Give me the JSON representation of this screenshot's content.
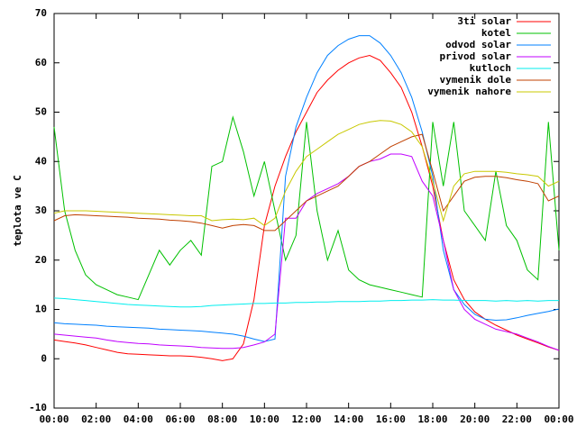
{
  "chart_data": {
    "type": "line",
    "y_label": "teplota ve C",
    "x": [
      0,
      0.5,
      1,
      1.5,
      2,
      2.5,
      3,
      3.5,
      4,
      4.5,
      5,
      5.5,
      6,
      6.5,
      7,
      7.5,
      8,
      8.5,
      9,
      9.5,
      10,
      10.5,
      11,
      11.5,
      12,
      12.5,
      13,
      13.5,
      14,
      14.5,
      15,
      15.5,
      16,
      16.5,
      17,
      17.5,
      18,
      18.5,
      19,
      19.5,
      20,
      20.5,
      21,
      21.5,
      22,
      22.5,
      23,
      23.5,
      24
    ],
    "xlim": [
      0,
      24
    ],
    "xticks": [
      {
        "value": 0,
        "label": "00:00"
      },
      {
        "value": 2,
        "label": "02:00"
      },
      {
        "value": 4,
        "label": "04:00"
      },
      {
        "value": 6,
        "label": "06:00"
      },
      {
        "value": 8,
        "label": "08:00"
      },
      {
        "value": 10,
        "label": "10:00"
      },
      {
        "value": 12,
        "label": "12:00"
      },
      {
        "value": 14,
        "label": "14:00"
      },
      {
        "value": 16,
        "label": "16:00"
      },
      {
        "value": 18,
        "label": "18:00"
      },
      {
        "value": 20,
        "label": "20:00"
      },
      {
        "value": 22,
        "label": "22:00"
      },
      {
        "value": 24,
        "label": "00:00"
      }
    ],
    "ylim": [
      -10,
      70
    ],
    "yticks": [
      -10,
      0,
      10,
      20,
      30,
      40,
      50,
      60,
      70
    ],
    "legend": "top-right",
    "series": [
      {
        "name": "3ti solar",
        "color": "#ff0000",
        "values": [
          3.8,
          3.5,
          3.2,
          2.8,
          2.3,
          1.8,
          1.3,
          1,
          0.9,
          0.8,
          0.7,
          0.6,
          0.6,
          0.5,
          0.3,
          0,
          -0.4,
          0,
          3,
          12,
          27,
          35,
          41,
          46,
          50,
          54,
          56.5,
          58.5,
          60,
          61,
          61.5,
          60.5,
          58,
          55,
          50,
          43,
          35,
          24,
          16,
          12,
          9.5,
          8,
          6.8,
          5.8,
          4.8,
          4,
          3.2,
          2.4,
          1.7
        ]
      },
      {
        "name": "kotel",
        "color": "#00c000",
        "values": [
          47,
          30,
          22,
          17,
          15,
          14,
          13,
          12.5,
          12,
          17,
          22,
          19,
          22,
          24,
          21,
          39,
          40,
          49,
          42,
          33,
          40,
          30,
          20,
          25,
          48,
          30,
          20,
          26,
          18,
          16,
          15,
          14.5,
          14,
          13.5,
          13,
          12.5,
          48,
          35,
          48,
          30,
          27,
          24,
          38,
          27,
          24,
          18,
          16,
          48,
          22
        ]
      },
      {
        "name": "odvod solar",
        "color": "#0080ff",
        "values": [
          7.3,
          7.1,
          7,
          6.9,
          6.8,
          6.6,
          6.5,
          6.4,
          6.3,
          6.2,
          6,
          5.9,
          5.8,
          5.7,
          5.6,
          5.4,
          5.2,
          5,
          4.6,
          4,
          3.5,
          4,
          37,
          47,
          53,
          58,
          61.5,
          63.5,
          64.8,
          65.5,
          65.5,
          64,
          61.5,
          58,
          53,
          46,
          37,
          22,
          14,
          11,
          9,
          8,
          7.8,
          7.9,
          8.3,
          8.8,
          9.2,
          9.6,
          10.1
        ]
      },
      {
        "name": "privod solar",
        "color": "#c000ff",
        "values": [
          5,
          4.8,
          4.6,
          4.4,
          4.2,
          3.8,
          3.5,
          3.3,
          3.1,
          3,
          2.8,
          2.7,
          2.6,
          2.5,
          2.3,
          2.2,
          2.1,
          2.1,
          2.3,
          2.8,
          3.4,
          5,
          28.5,
          28.5,
          32,
          33.5,
          34.5,
          35.5,
          37,
          39,
          40,
          40.5,
          41.5,
          41.5,
          41,
          36,
          33,
          24,
          14,
          10,
          8,
          7,
          6,
          5.5,
          5,
          4.2,
          3.4,
          2.5,
          1.7
        ]
      },
      {
        "name": "kutloch",
        "color": "#00eeee",
        "values": [
          12.3,
          12.2,
          12,
          11.8,
          11.6,
          11.4,
          11.2,
          11,
          10.9,
          10.8,
          10.7,
          10.6,
          10.5,
          10.5,
          10.6,
          10.8,
          10.9,
          11,
          11.1,
          11.2,
          11.2,
          11.3,
          11.3,
          11.4,
          11.4,
          11.5,
          11.5,
          11.6,
          11.6,
          11.6,
          11.7,
          11.7,
          11.8,
          11.8,
          11.9,
          11.9,
          12,
          11.9,
          11.9,
          11.8,
          11.8,
          11.8,
          11.7,
          11.8,
          11.7,
          11.8,
          11.7,
          11.8,
          11.8
        ]
      },
      {
        "name": "vymenik dole",
        "color": "#c04000",
        "values": [
          28,
          29,
          29.2,
          29.1,
          29,
          28.9,
          28.8,
          28.7,
          28.5,
          28.4,
          28.3,
          28.1,
          28,
          27.8,
          27.5,
          27,
          26.5,
          27,
          27.2,
          27,
          26,
          26,
          28,
          30,
          32,
          33,
          34,
          35,
          37,
          39,
          40,
          41.5,
          43,
          44,
          45,
          45.5,
          38,
          30,
          33,
          36,
          36.8,
          37,
          37,
          36.7,
          36.3,
          36,
          35.5,
          32,
          33
        ]
      },
      {
        "name": "vymenik nahore",
        "color": "#c8c800",
        "values": [
          29.5,
          30,
          30,
          30,
          29.9,
          29.8,
          29.7,
          29.6,
          29.5,
          29.4,
          29.3,
          29.2,
          29.1,
          29,
          29,
          28,
          28.2,
          28.3,
          28.2,
          28.5,
          27,
          28.5,
          34,
          38,
          41,
          42.5,
          44,
          45.5,
          46.5,
          47.5,
          48,
          48.3,
          48.2,
          47.5,
          46,
          43,
          36,
          28,
          35,
          37.5,
          38,
          38,
          38,
          37.8,
          37.5,
          37.3,
          37,
          35,
          36
        ]
      }
    ]
  }
}
